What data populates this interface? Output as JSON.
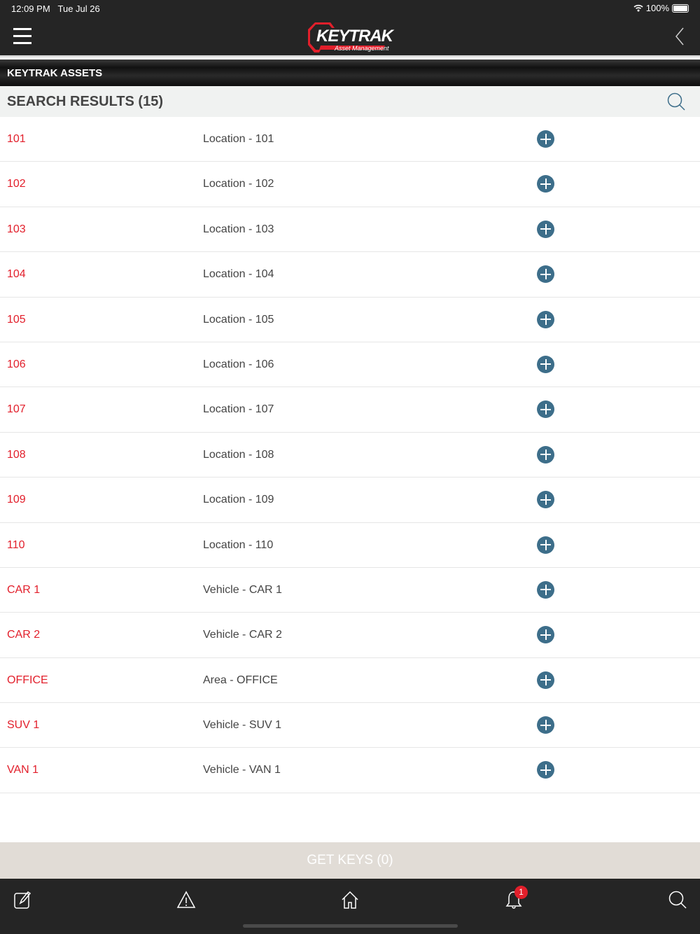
{
  "status": {
    "time": "12:09 PM",
    "date": "Tue Jul 26",
    "battery": "100%"
  },
  "nav": {
    "logo_text": "KEYTRAK",
    "logo_sub": "Asset Management"
  },
  "section_title": "KEYTRAK ASSETS",
  "results_title": "SEARCH RESULTS (15)",
  "rows": [
    {
      "id": "101",
      "desc": "Location - 101"
    },
    {
      "id": "102",
      "desc": "Location - 102"
    },
    {
      "id": "103",
      "desc": "Location - 103"
    },
    {
      "id": "104",
      "desc": "Location - 104"
    },
    {
      "id": "105",
      "desc": "Location - 105"
    },
    {
      "id": "106",
      "desc": "Location - 106"
    },
    {
      "id": "107",
      "desc": "Location - 107"
    },
    {
      "id": "108",
      "desc": "Location - 108"
    },
    {
      "id": "109",
      "desc": "Location - 109"
    },
    {
      "id": "110",
      "desc": "Location - 110"
    },
    {
      "id": "CAR 1",
      "desc": "Vehicle - CAR 1"
    },
    {
      "id": "CAR 2",
      "desc": "Vehicle - CAR 2"
    },
    {
      "id": "OFFICE",
      "desc": "Area - OFFICE"
    },
    {
      "id": "SUV 1",
      "desc": "Vehicle - SUV 1"
    },
    {
      "id": "VAN 1",
      "desc": "Vehicle - VAN 1"
    }
  ],
  "get_keys": "GET KEYS (0)",
  "tabbar": {
    "notification_count": "1"
  },
  "colors": {
    "accent": "#e21f2b",
    "add": "#3d6e8a",
    "bar": "#252525"
  }
}
